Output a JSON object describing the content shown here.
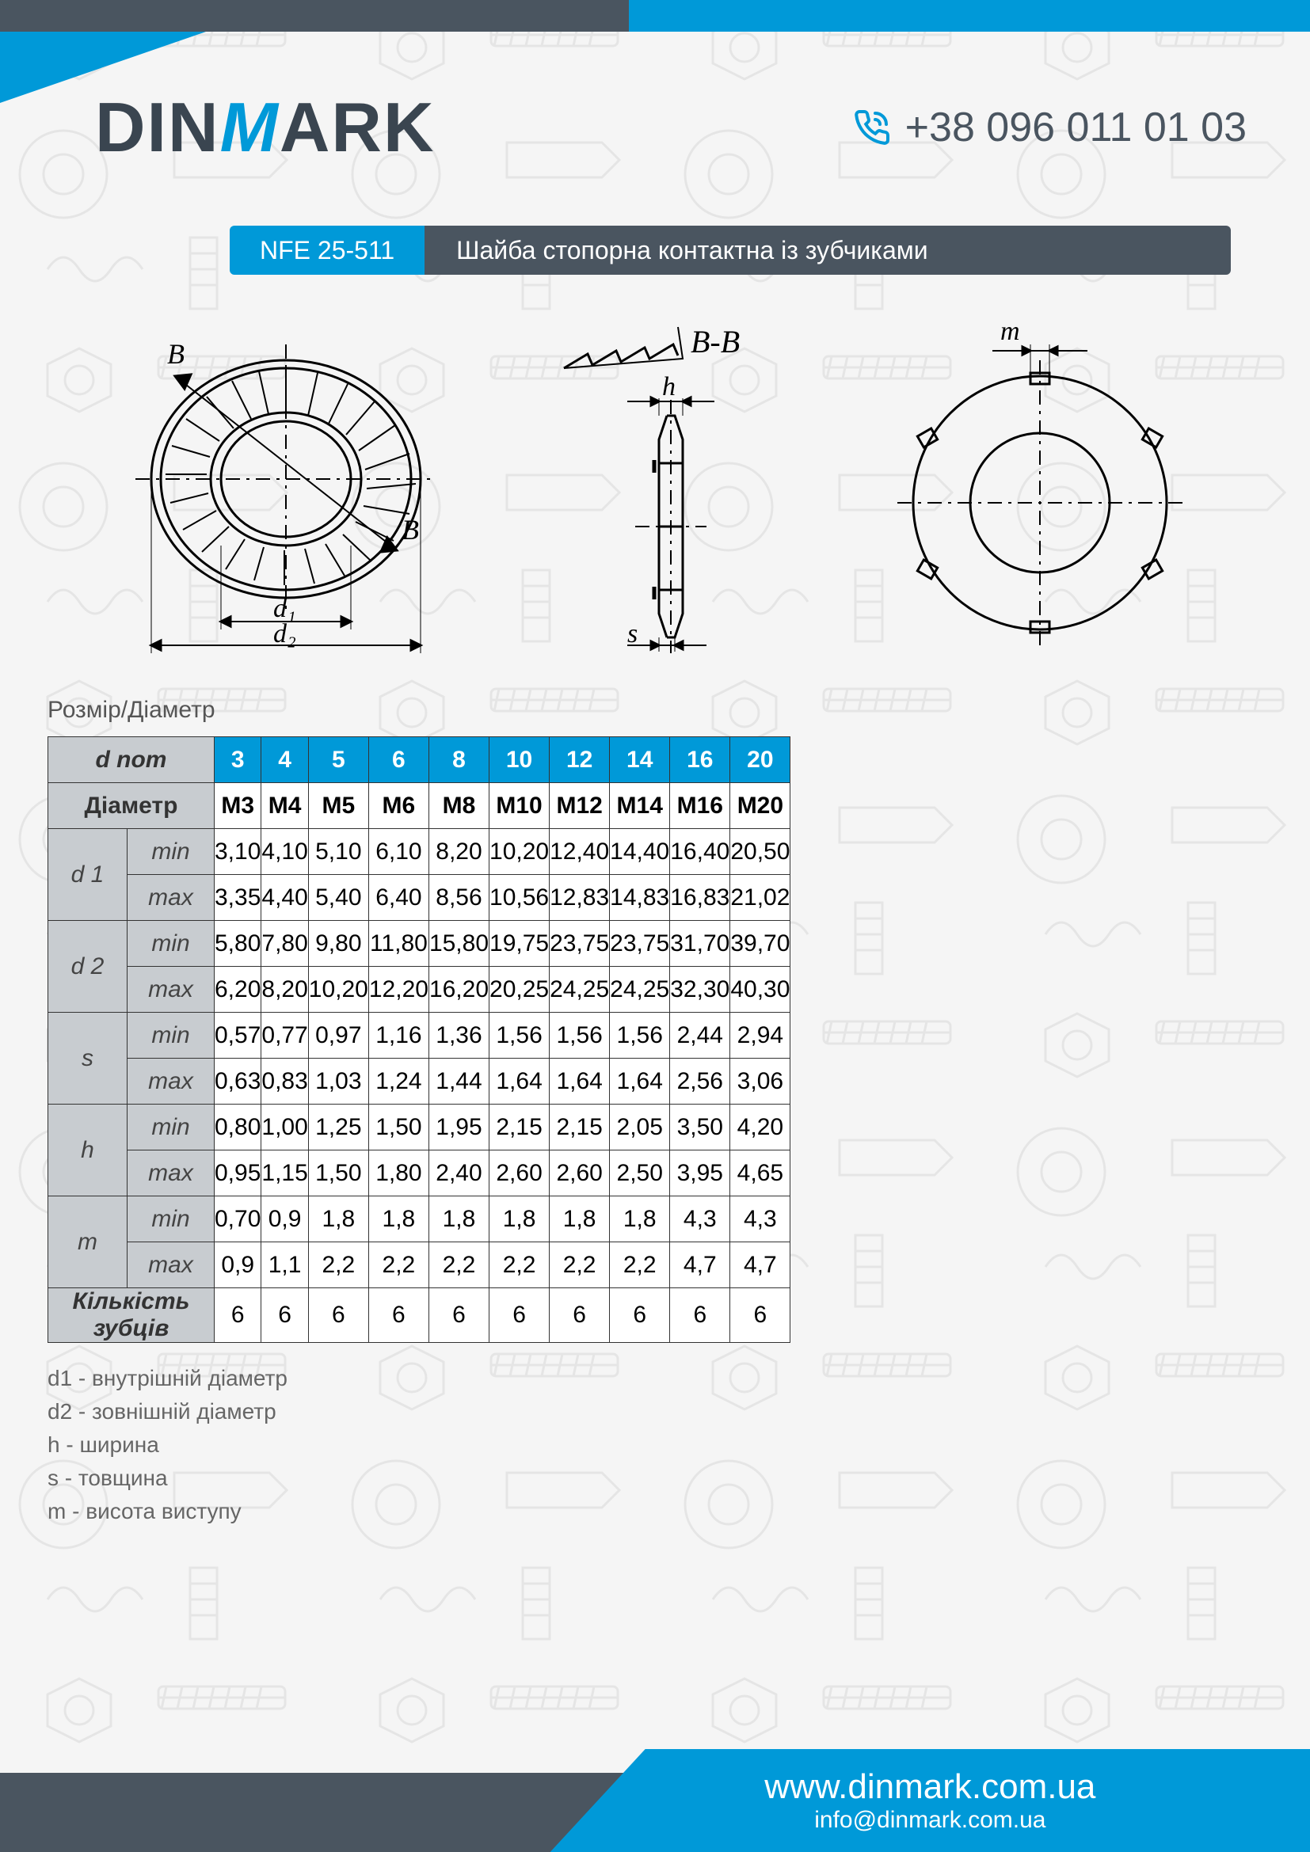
{
  "brand": {
    "part1": "DIN",
    "part2": "M",
    "part3": "ARK"
  },
  "phone": "+38 096 011 01 03",
  "title": {
    "code": "NFE 25-511",
    "text": "Шайба стопорна контактна із зубчиками"
  },
  "section_label": "Розмір/Діаметр",
  "colors": {
    "accent": "#0099d8",
    "dark": "#4a5560",
    "header_grey": "#c8ccd0",
    "border": "#333333",
    "bg": "#f5f5f5",
    "text_muted": "#666666"
  },
  "diagram": {
    "labels": {
      "section": "B-B",
      "b1": "B",
      "b2": "B",
      "d1": "d₁",
      "d2": "d₂",
      "h": "h",
      "s": "s",
      "m": "m"
    }
  },
  "table": {
    "header_label": "d nom",
    "diameter_label": "Діаметр",
    "sizes": [
      "3",
      "4",
      "5",
      "6",
      "8",
      "10",
      "12",
      "14",
      "16",
      "20"
    ],
    "diameters": [
      "M3",
      "M4",
      "M5",
      "M6",
      "M8",
      "M10",
      "M12",
      "M14",
      "M16",
      "M20"
    ],
    "params": [
      {
        "name": "d 1",
        "min": [
          "3,10",
          "4,10",
          "5,10",
          "6,10",
          "8,20",
          "10,20",
          "12,40",
          "14,40",
          "16,40",
          "20,50"
        ],
        "max": [
          "3,35",
          "4,40",
          "5,40",
          "6,40",
          "8,56",
          "10,56",
          "12,83",
          "14,83",
          "16,83",
          "21,02"
        ]
      },
      {
        "name": "d 2",
        "min": [
          "5,80",
          "7,80",
          "9,80",
          "11,80",
          "15,80",
          "19,75",
          "23,75",
          "23,75",
          "31,70",
          "39,70"
        ],
        "max": [
          "6,20",
          "8,20",
          "10,20",
          "12,20",
          "16,20",
          "20,25",
          "24,25",
          "24,25",
          "32,30",
          "40,30"
        ]
      },
      {
        "name": "s",
        "min": [
          "0,57",
          "0,77",
          "0,97",
          "1,16",
          "1,36",
          "1,56",
          "1,56",
          "1,56",
          "2,44",
          "2,94"
        ],
        "max": [
          "0,63",
          "0,83",
          "1,03",
          "1,24",
          "1,44",
          "1,64",
          "1,64",
          "1,64",
          "2,56",
          "3,06"
        ]
      },
      {
        "name": "h",
        "min": [
          "0,80",
          "1,00",
          "1,25",
          "1,50",
          "1,95",
          "2,15",
          "2,15",
          "2,05",
          "3,50",
          "4,20"
        ],
        "max": [
          "0,95",
          "1,15",
          "1,50",
          "1,80",
          "2,40",
          "2,60",
          "2,60",
          "2,50",
          "3,95",
          "4,65"
        ]
      },
      {
        "name": "m",
        "min": [
          "0,70",
          "0,9",
          "1,8",
          "1,8",
          "1,8",
          "1,8",
          "1,8",
          "1,8",
          "4,3",
          "4,3"
        ],
        "max": [
          "0,9",
          "1,1",
          "2,2",
          "2,2",
          "2,2",
          "2,2",
          "2,2",
          "2,2",
          "4,7",
          "4,7"
        ]
      }
    ],
    "teeth_label": "Кількість зубців",
    "teeth": [
      "6",
      "6",
      "6",
      "6",
      "6",
      "6",
      "6",
      "6",
      "6",
      "6"
    ],
    "min_label": "min",
    "max_label": "max"
  },
  "legend": [
    "d1 - внутрішній діаметр",
    "d2 - зовнішній діаметр",
    "h - ширина",
    "s - товщина",
    "m - висота виступу"
  ],
  "footer": {
    "url": "www.dinmark.com.ua",
    "email": "info@dinmark.com.ua"
  }
}
